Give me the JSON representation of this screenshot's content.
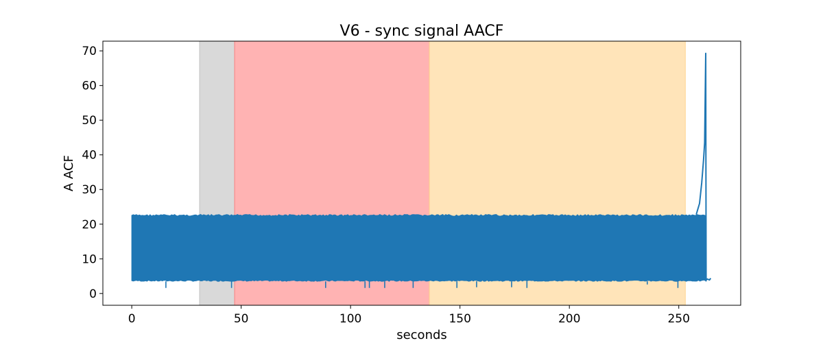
{
  "chart_data": {
    "type": "line",
    "title": "V6 - sync signal AACF",
    "xlabel": "seconds",
    "ylabel": "A ACF",
    "xlim": [
      -13.2,
      278.3
    ],
    "ylim": [
      -3.4,
      72.8
    ],
    "xticks": [
      0,
      50,
      100,
      150,
      200,
      250
    ],
    "yticks": [
      0,
      10,
      20,
      30,
      40,
      50,
      60,
      70
    ],
    "grid": false,
    "legend": "none",
    "bands": [
      {
        "x0": 31,
        "x1": 47,
        "color": "#bfbfbf"
      },
      {
        "x0": 47,
        "x1": 136,
        "color": "#ff8080"
      },
      {
        "x0": 136,
        "x1": 253,
        "color": "#ffd28a"
      }
    ],
    "series": [
      {
        "color": "#1f77b4",
        "envelope": {
          "x_start": 0,
          "x_end": 262.5,
          "y_min": 3.5,
          "y_max": 22.8
        },
        "dips": [
          {
            "x": 15.6,
            "y": 1.6
          },
          {
            "x": 45.6,
            "y": 1.6
          },
          {
            "x": 88.6,
            "y": 1.6
          },
          {
            "x": 106.6,
            "y": 1.6
          },
          {
            "x": 108.6,
            "y": 1.6
          },
          {
            "x": 115.6,
            "y": 1.6
          },
          {
            "x": 128.6,
            "y": 1.6
          },
          {
            "x": 148.6,
            "y": 1.6
          },
          {
            "x": 157.6,
            "y": 1.8
          },
          {
            "x": 173.6,
            "y": 1.8
          },
          {
            "x": 180.6,
            "y": 1.6
          },
          {
            "x": 235.6,
            "y": 2.6
          },
          {
            "x": 249.6,
            "y": 1.6
          }
        ],
        "tail": [
          {
            "x": 258.0,
            "y": 22.8
          },
          {
            "x": 259.5,
            "y": 26.0
          },
          {
            "x": 260.5,
            "y": 32.0
          },
          {
            "x": 261.3,
            "y": 38.5
          },
          {
            "x": 261.8,
            "y": 43.5
          },
          {
            "x": 262.1,
            "y": 58.0
          },
          {
            "x": 262.3,
            "y": 69.3
          },
          {
            "x": 262.5,
            "y": 3.8
          },
          {
            "x": 263.0,
            "y": 4.2
          },
          {
            "x": 264.0,
            "y": 3.9
          },
          {
            "x": 264.6,
            "y": 4.4
          }
        ]
      }
    ]
  }
}
